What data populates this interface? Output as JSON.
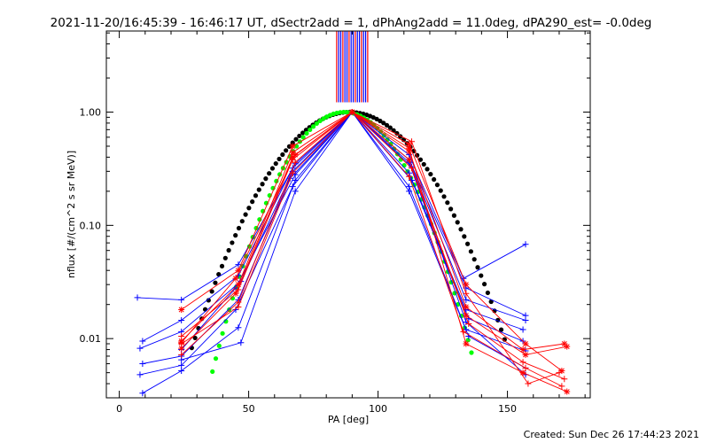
{
  "chart_data": {
    "type": "line",
    "title": "2021-11-20/16:45:39 - 16:46:17 UT, dSectr2add = 1, dPhAng2add = 11.0deg, dPA290_est= -0.0deg",
    "xlabel": "PA [deg]",
    "ylabel": "nflux [#/(cm^2 s sr MeV)]",
    "xlim": [
      -5,
      182
    ],
    "ylim": [
      0.003,
      5.2
    ],
    "yscale": "log",
    "x_ticks": [
      0,
      50,
      100,
      150
    ],
    "x_tick_labels": [
      "0",
      "50",
      "100",
      "150"
    ],
    "y_ticks": [
      0.01,
      0.1,
      1.0
    ],
    "y_tick_labels": [
      "0.01",
      "0.10",
      "1.00"
    ],
    "grid": false,
    "footer": "Created: Sun Dec 26 17:44:23 2021",
    "colors": {
      "blue": "#0000ff",
      "red": "#ff0000",
      "black": "#000000",
      "green": "#00ff00",
      "axis": "#000000"
    },
    "vertical_markers": {
      "x": [
        84,
        84.8,
        85.6,
        86.4,
        87.2,
        88,
        88.8,
        89.6,
        90.4,
        91.2,
        92,
        92.8,
        93.6,
        94.4,
        95.2,
        96
      ],
      "colors": [
        "#ff0000",
        "#0000ff",
        "#0000ff",
        "#ff0000",
        "#0000ff",
        "#0000ff",
        "#ff0000",
        "#0000ff",
        "#0000ff",
        "#ff0000",
        "#0000ff",
        "#0000ff",
        "#ff0000",
        "#0000ff",
        "#0000ff",
        "#ff0000"
      ]
    },
    "series": [
      {
        "color": "#0000ff",
        "marker": "plus",
        "x": [
          7,
          24,
          46,
          68,
          90,
          112,
          133,
          157
        ],
        "y": [
          0.023,
          0.022,
          0.045,
          0.35,
          1.0,
          0.42,
          0.034,
          0.068
        ]
      },
      {
        "color": "#0000ff",
        "marker": "plus",
        "x": [
          9,
          24,
          46,
          67,
          90,
          112,
          134,
          157
        ],
        "y": [
          0.0095,
          0.0145,
          0.036,
          0.32,
          1.0,
          0.38,
          0.028,
          0.016
        ]
      },
      {
        "color": "#0000ff",
        "marker": "plus",
        "x": [
          8,
          24,
          47,
          67,
          90,
          113,
          134,
          157
        ],
        "y": [
          0.0082,
          0.0115,
          0.032,
          0.3,
          1.0,
          0.33,
          0.022,
          0.0145
        ]
      },
      {
        "color": "#0000ff",
        "marker": "plus",
        "x": [
          9,
          24,
          46,
          66,
          90,
          112,
          134,
          156
        ],
        "y": [
          0.006,
          0.007,
          0.022,
          0.26,
          1.0,
          0.29,
          0.018,
          0.012
        ]
      },
      {
        "color": "#0000ff",
        "marker": "plus",
        "x": [
          8,
          24,
          45,
          67,
          90,
          113,
          135,
          156
        ],
        "y": [
          0.0048,
          0.0058,
          0.018,
          0.22,
          1.0,
          0.25,
          0.015,
          0.0095
        ]
      },
      {
        "color": "#0000ff",
        "marker": "plus",
        "x": [
          9,
          24,
          46,
          68,
          90,
          112,
          134,
          157
        ],
        "y": [
          0.0033,
          0.0052,
          0.0125,
          0.25,
          1.0,
          0.22,
          0.012,
          0.0078
        ]
      },
      {
        "color": "#0000ff",
        "marker": "plus",
        "x": [
          24,
          47,
          68,
          90,
          112,
          135,
          157
        ],
        "y": [
          0.0065,
          0.0092,
          0.2,
          1.0,
          0.2,
          0.0105,
          0.0055
        ]
      },
      {
        "color": "#0000ff",
        "marker": "plus",
        "x": [
          24,
          45,
          68,
          90,
          112,
          134,
          157
        ],
        "y": [
          0.008,
          0.028,
          0.28,
          1.0,
          0.36,
          0.014,
          0.0048
        ]
      },
      {
        "color": "#ff0000",
        "marker": "star",
        "x": [
          24,
          46,
          67,
          90,
          112,
          134,
          157,
          171
        ],
        "y": [
          0.018,
          0.04,
          0.5,
          1.0,
          0.52,
          0.03,
          0.009,
          0.0052
        ]
      },
      {
        "color": "#ff0000",
        "marker": "star",
        "x": [
          24,
          46,
          67,
          90,
          112,
          134,
          156,
          172
        ],
        "y": [
          0.0095,
          0.03,
          0.44,
          1.0,
          0.45,
          0.019,
          0.008,
          0.009
        ]
      },
      {
        "color": "#ff0000",
        "marker": "star",
        "x": [
          24,
          45,
          67,
          90,
          112,
          134,
          157,
          173
        ],
        "y": [
          0.0082,
          0.025,
          0.4,
          1.0,
          0.38,
          0.016,
          0.0072,
          0.0085
        ]
      },
      {
        "color": "#ff0000",
        "marker": "plus",
        "x": [
          24,
          46,
          68,
          90,
          113,
          135,
          156,
          172
        ],
        "y": [
          0.0072,
          0.021,
          0.36,
          1.0,
          0.32,
          0.0135,
          0.0062,
          0.0044
        ]
      },
      {
        "color": "#ff0000",
        "marker": "plus",
        "x": [
          24,
          46,
          67,
          90,
          112,
          133,
          157,
          171
        ],
        "y": [
          0.009,
          0.019,
          0.29,
          1.0,
          0.27,
          0.0115,
          0.0055,
          0.0038
        ]
      },
      {
        "color": "#ff0000",
        "marker": "star",
        "x": [
          24,
          45,
          68,
          90,
          112,
          134,
          156,
          173
        ],
        "y": [
          0.0092,
          0.034,
          0.42,
          1.0,
          0.48,
          0.009,
          0.005,
          0.0034
        ]
      },
      {
        "color": "#ff0000",
        "marker": "plus",
        "x": [
          24,
          46,
          67,
          90,
          113,
          134,
          158,
          170
        ],
        "y": [
          0.0105,
          0.027,
          0.38,
          1.0,
          0.55,
          0.025,
          0.004,
          0.005
        ]
      }
    ],
    "fit_curves": [
      {
        "color": "#000000",
        "type": "gaussian-dots",
        "peak_x": 89,
        "peak_y": 1.0,
        "sigma_deg": 19.7,
        "x_range": [
          28,
          150
        ],
        "step": 1.3
      },
      {
        "color": "#00ff00",
        "type": "gaussian-dots",
        "peak_x": 87,
        "peak_y": 1.0,
        "sigma_deg": 15.7,
        "x_range": [
          36,
          137
        ],
        "step": 1.3
      }
    ]
  }
}
